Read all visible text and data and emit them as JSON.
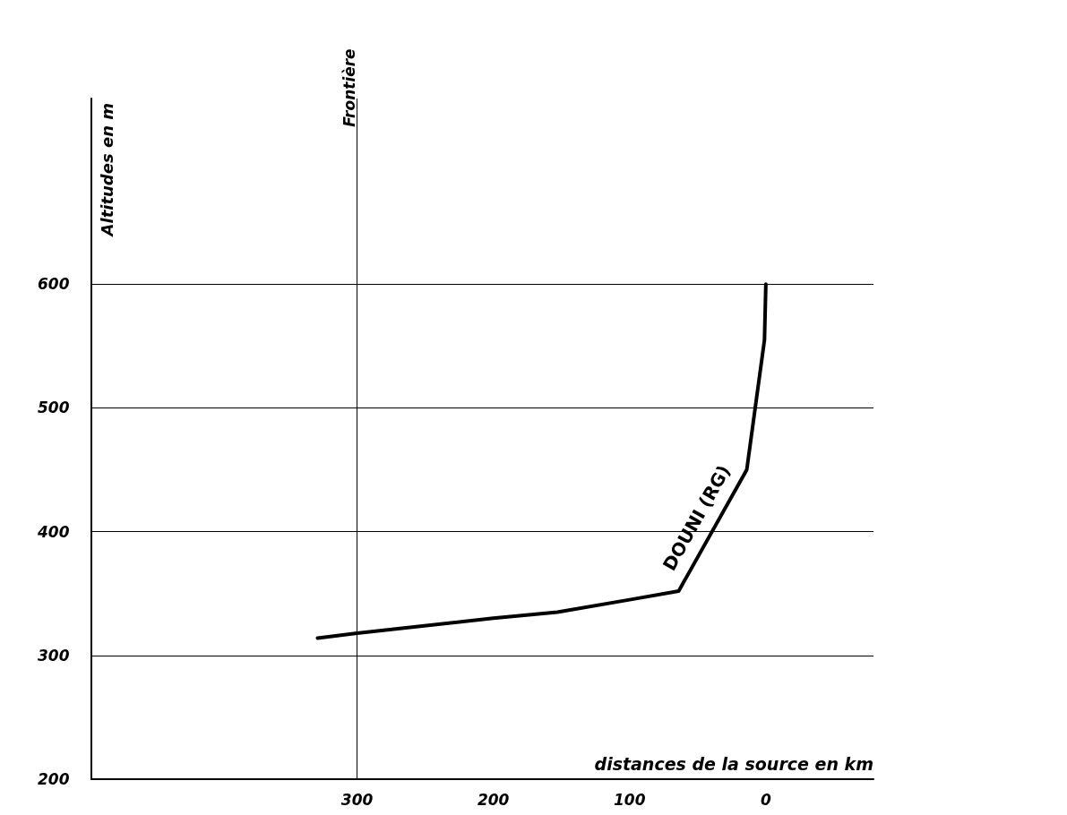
{
  "chart_data": {
    "type": "line",
    "xlabel": "distances de la source en km",
    "ylabel": "Altitudes en m",
    "x": [
      0,
      1,
      14,
      64,
      100,
      153,
      200,
      300,
      329
    ],
    "series": [
      {
        "color": "#000000",
        "values": [
          600,
          555,
          450,
          352,
          345,
          335,
          330,
          318,
          314
        ]
      }
    ],
    "xlim": [
      495,
      -79
    ],
    "xticks": [
      300,
      200,
      100,
      0
    ],
    "ylim": [
      200,
      750
    ],
    "yticks": [
      200,
      300,
      400,
      500,
      600
    ],
    "grid": "y",
    "marker": "none",
    "line_style": "solid",
    "ref_lines": [
      {
        "axis": "x",
        "value": 300,
        "label": "Frontière",
        "color": "#000000"
      }
    ],
    "annotations": [
      "DOUNI (RG)"
    ]
  }
}
